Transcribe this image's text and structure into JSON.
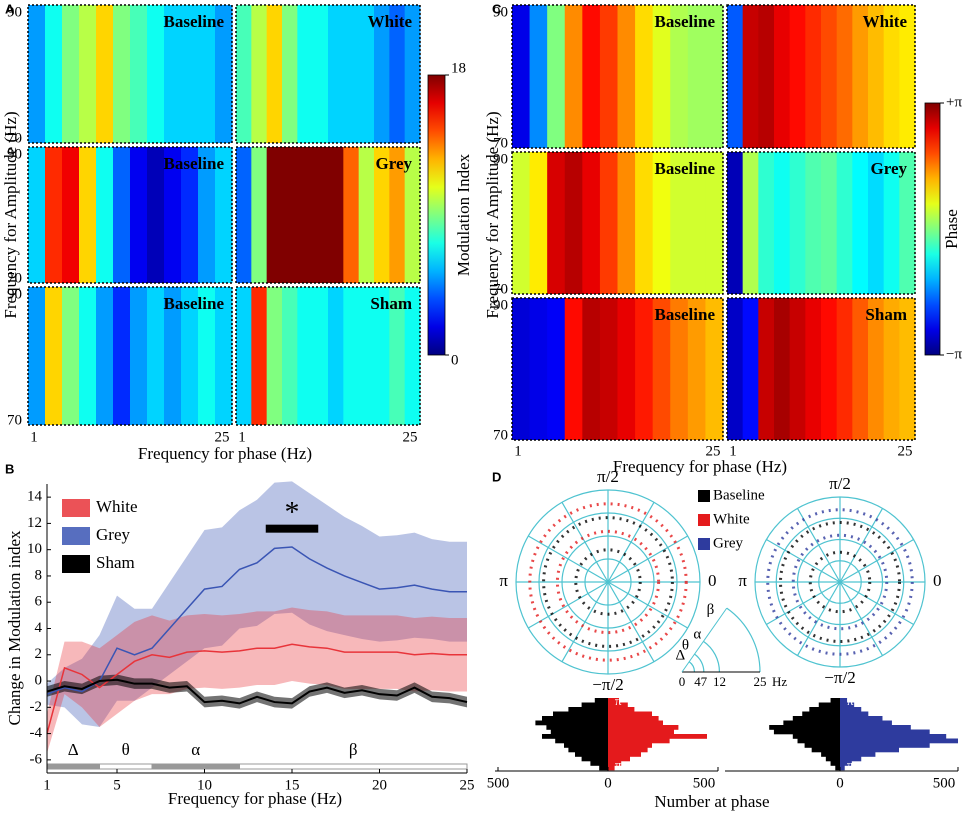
{
  "chart_data": [
    {
      "type": "heatmap",
      "label": "A",
      "ylabel": "Frequency for Amplitude (Hz)",
      "xlabel": "Frequency for phase (Hz)",
      "colorbar_label": "Modulation Index",
      "clim": [
        0,
        18
      ],
      "cticks": [
        0,
        18
      ],
      "yticks": [
        70,
        90
      ],
      "xticks": [
        1,
        25
      ],
      "panels": [
        {
          "title": "Baseline",
          "values": [
            5,
            7,
            9,
            10,
            12,
            9,
            8,
            7,
            6,
            6,
            6,
            5
          ]
        },
        {
          "title": "White",
          "values": [
            8,
            10,
            12,
            9,
            7,
            7,
            6,
            6,
            6,
            5,
            4,
            5
          ]
        },
        {
          "title": "Baseline",
          "values": [
            6,
            15,
            16,
            12,
            7,
            4,
            2,
            1,
            2,
            3,
            5,
            6
          ]
        },
        {
          "title": "Grey",
          "values": [
            4,
            9,
            18,
            18,
            18,
            18,
            18,
            14,
            10,
            12,
            13,
            10
          ]
        },
        {
          "title": "Baseline",
          "values": [
            5,
            12,
            9,
            7,
            5,
            3,
            5,
            6,
            5,
            6,
            7,
            6
          ]
        },
        {
          "title": "Sham",
          "values": [
            6,
            15,
            9,
            8,
            7,
            7,
            6,
            7,
            7,
            7,
            8,
            7
          ]
        }
      ]
    },
    {
      "type": "line",
      "label": "B",
      "xlabel": "Frequency for phase (Hz)",
      "ylabel": "Change in Modulation index",
      "x": [
        1,
        2,
        3,
        4,
        5,
        6,
        7,
        8,
        9,
        10,
        11,
        12,
        13,
        14,
        15,
        16,
        17,
        18,
        19,
        20,
        21,
        22,
        23,
        24,
        25
      ],
      "xlim": [
        1,
        25
      ],
      "ylim": [
        -7,
        15
      ],
      "xticks": [
        1,
        5,
        10,
        15,
        20,
        25
      ],
      "yticks": [
        -6,
        -4,
        -2,
        0,
        2,
        4,
        6,
        8,
        10,
        12,
        14
      ],
      "series": [
        {
          "name": "White",
          "color": "#e8343a",
          "values": [
            -4,
            1,
            0.5,
            -0.5,
            0.5,
            1.5,
            2,
            1.8,
            2.2,
            2.3,
            2.2,
            2.3,
            2.5,
            2.5,
            2.8,
            2.6,
            2.5,
            2.2,
            2.2,
            2.2,
            2.2,
            2,
            2.1,
            2,
            2
          ],
          "errors": [
            1.5,
            2,
            2.5,
            3,
            3,
            3,
            3,
            2.8,
            2.8,
            2.8,
            2.8,
            2.8,
            2.8,
            2.8,
            2.8,
            2.8,
            2.8,
            2.8,
            2.8,
            2.8,
            2.8,
            2.8,
            2.8,
            2.8,
            2.8
          ]
        },
        {
          "name": "Grey",
          "color": "#3a55b4",
          "values": [
            -1,
            -0.5,
            -0.8,
            0,
            2.5,
            2,
            2.5,
            4,
            5.5,
            7,
            7.2,
            8.5,
            9,
            10.1,
            10.2,
            9.3,
            8.6,
            8,
            7.5,
            7,
            7.1,
            7.3,
            7,
            6.8,
            6.8
          ],
          "errors": [
            0.8,
            1.5,
            2.5,
            3.5,
            4,
            3.5,
            3,
            3.5,
            4,
            4.5,
            4.5,
            4.5,
            4.8,
            5,
            5,
            5,
            4.8,
            4.5,
            4.3,
            4,
            4,
            4,
            3.8,
            3.8,
            3.8
          ]
        },
        {
          "name": "Sham",
          "color": "#000000",
          "values": [
            -0.8,
            -0.4,
            -0.6,
            0,
            0.1,
            -0.2,
            -0.2,
            -0.5,
            -0.4,
            -1.6,
            -1.5,
            -1.7,
            -1.2,
            -1.6,
            -1.7,
            -0.8,
            -0.5,
            -0.9,
            -0.7,
            -1,
            -1.1,
            -0.5,
            -1.2,
            -1.3,
            -1.6
          ],
          "errors": [
            0.4,
            0.4,
            0.4,
            0.4,
            0.4,
            0.4,
            0.4,
            0.4,
            0.4,
            0.4,
            0.4,
            0.4,
            0.4,
            0.4,
            0.4,
            0.4,
            0.4,
            0.4,
            0.4,
            0.4,
            0.4,
            0.4,
            0.4,
            0.4,
            0.4
          ]
        }
      ],
      "significance": {
        "label": "*",
        "x": [
          13.5,
          16.5
        ],
        "y": 11.6
      },
      "bands": [
        {
          "label": "Δ",
          "range": [
            1,
            4
          ]
        },
        {
          "label": "θ",
          "range": [
            4,
            7
          ]
        },
        {
          "label": "α",
          "range": [
            7,
            12
          ]
        },
        {
          "label": "β",
          "range": [
            12,
            25
          ]
        }
      ]
    },
    {
      "type": "heatmap",
      "label": "C",
      "ylabel": "Frequency for Amplitude (Hz)",
      "xlabel": "Frequency for phase (Hz)",
      "colorbar_label": "Phase",
      "clim": [
        -3.14159,
        3.14159
      ],
      "cticks": [
        {
          "value": 3.14159,
          "label": "+π"
        },
        {
          "value": -3.14159,
          "label": "−π"
        }
      ],
      "yticks": [
        70,
        90
      ],
      "xticks": [
        1,
        25
      ],
      "panels": [
        {
          "title": "Baseline",
          "values": [
            -2.5,
            -1.5,
            0,
            1.5,
            2.3,
            2,
            1.5,
            1,
            0.6,
            0.3,
            0.2,
            0.2
          ]
        },
        {
          "title": "White",
          "values": [
            -1.8,
            2.7,
            2.8,
            2.5,
            2.3,
            2.1,
            1.9,
            1.7,
            1.4,
            1.2,
            1,
            0.9
          ]
        },
        {
          "title": "Baseline",
          "values": [
            0.5,
            0.9,
            2.6,
            2.8,
            2.5,
            2,
            1.5,
            1,
            0.7,
            0.5,
            0.5,
            0.5
          ]
        },
        {
          "title": "Grey",
          "values": [
            -2.8,
            0.3,
            -0.5,
            -0.7,
            -0.5,
            -0.3,
            -0.2,
            -0.5,
            -0.8,
            -1,
            -0.7,
            -0.3
          ]
        },
        {
          "title": "Baseline",
          "values": [
            -2.6,
            -2.5,
            -2.4,
            2.3,
            2.8,
            2.7,
            2.5,
            2.2,
            1.9,
            1.6,
            1.4,
            1.2
          ]
        },
        {
          "title": "Sham",
          "values": [
            -2.7,
            -2.3,
            2.7,
            2.9,
            2.7,
            2.5,
            2.3,
            2.1,
            1.8,
            1.5,
            1.3,
            1.2
          ]
        }
      ]
    },
    {
      "type": "polar_histogram",
      "label": "D",
      "xlabel": "Number at phase",
      "angle_labels": {
        "top": "π/2",
        "left": "π",
        "right": "0",
        "bottom": "−π/2"
      },
      "legend": [
        {
          "name": "Baseline",
          "color": "#000000"
        },
        {
          "name": "White",
          "color": "#e41a1c"
        },
        {
          "name": "Grey",
          "color": "#2e3b9e"
        }
      ],
      "inset": {
        "bands": [
          "Δ",
          "θ",
          "α",
          "β"
        ],
        "ticks": [
          0,
          4,
          7,
          12,
          25
        ],
        "unit": "Hz"
      },
      "hist_angle_labels": [
        "π",
        "π"
      ],
      "xlim": [
        -500,
        500
      ],
      "histograms": [
        {
          "xticks": [
            {
              "value": -500,
              "label": "500"
            },
            0,
            500
          ],
          "left": {
            "legend": 0,
            "counts": [
              60,
              120,
              180,
              250,
              300,
              330,
              280,
              260,
              300,
              240,
              200,
              180,
              150,
              120,
              80,
              40
            ]
          },
          "right": {
            "legend": 1,
            "counts": [
              50,
              90,
              120,
              200,
              230,
              250,
              320,
              300,
              450,
              280,
              200,
              180,
              150,
              100,
              60,
              30
            ]
          }
        },
        {
          "xticks": [
            0,
            500
          ],
          "left": {
            "legend": 0,
            "counts": [
              40,
              90,
              130,
              160,
              200,
              240,
              300,
              280,
              200,
              180,
              150,
              120,
              80,
              60,
              40,
              20
            ]
          },
          "right": {
            "legend": 2,
            "counts": [
              30,
              60,
              90,
              120,
              180,
              220,
              300,
              380,
              450,
              500,
              380,
              250,
              150,
              90,
              50,
              20
            ]
          }
        }
      ]
    }
  ]
}
